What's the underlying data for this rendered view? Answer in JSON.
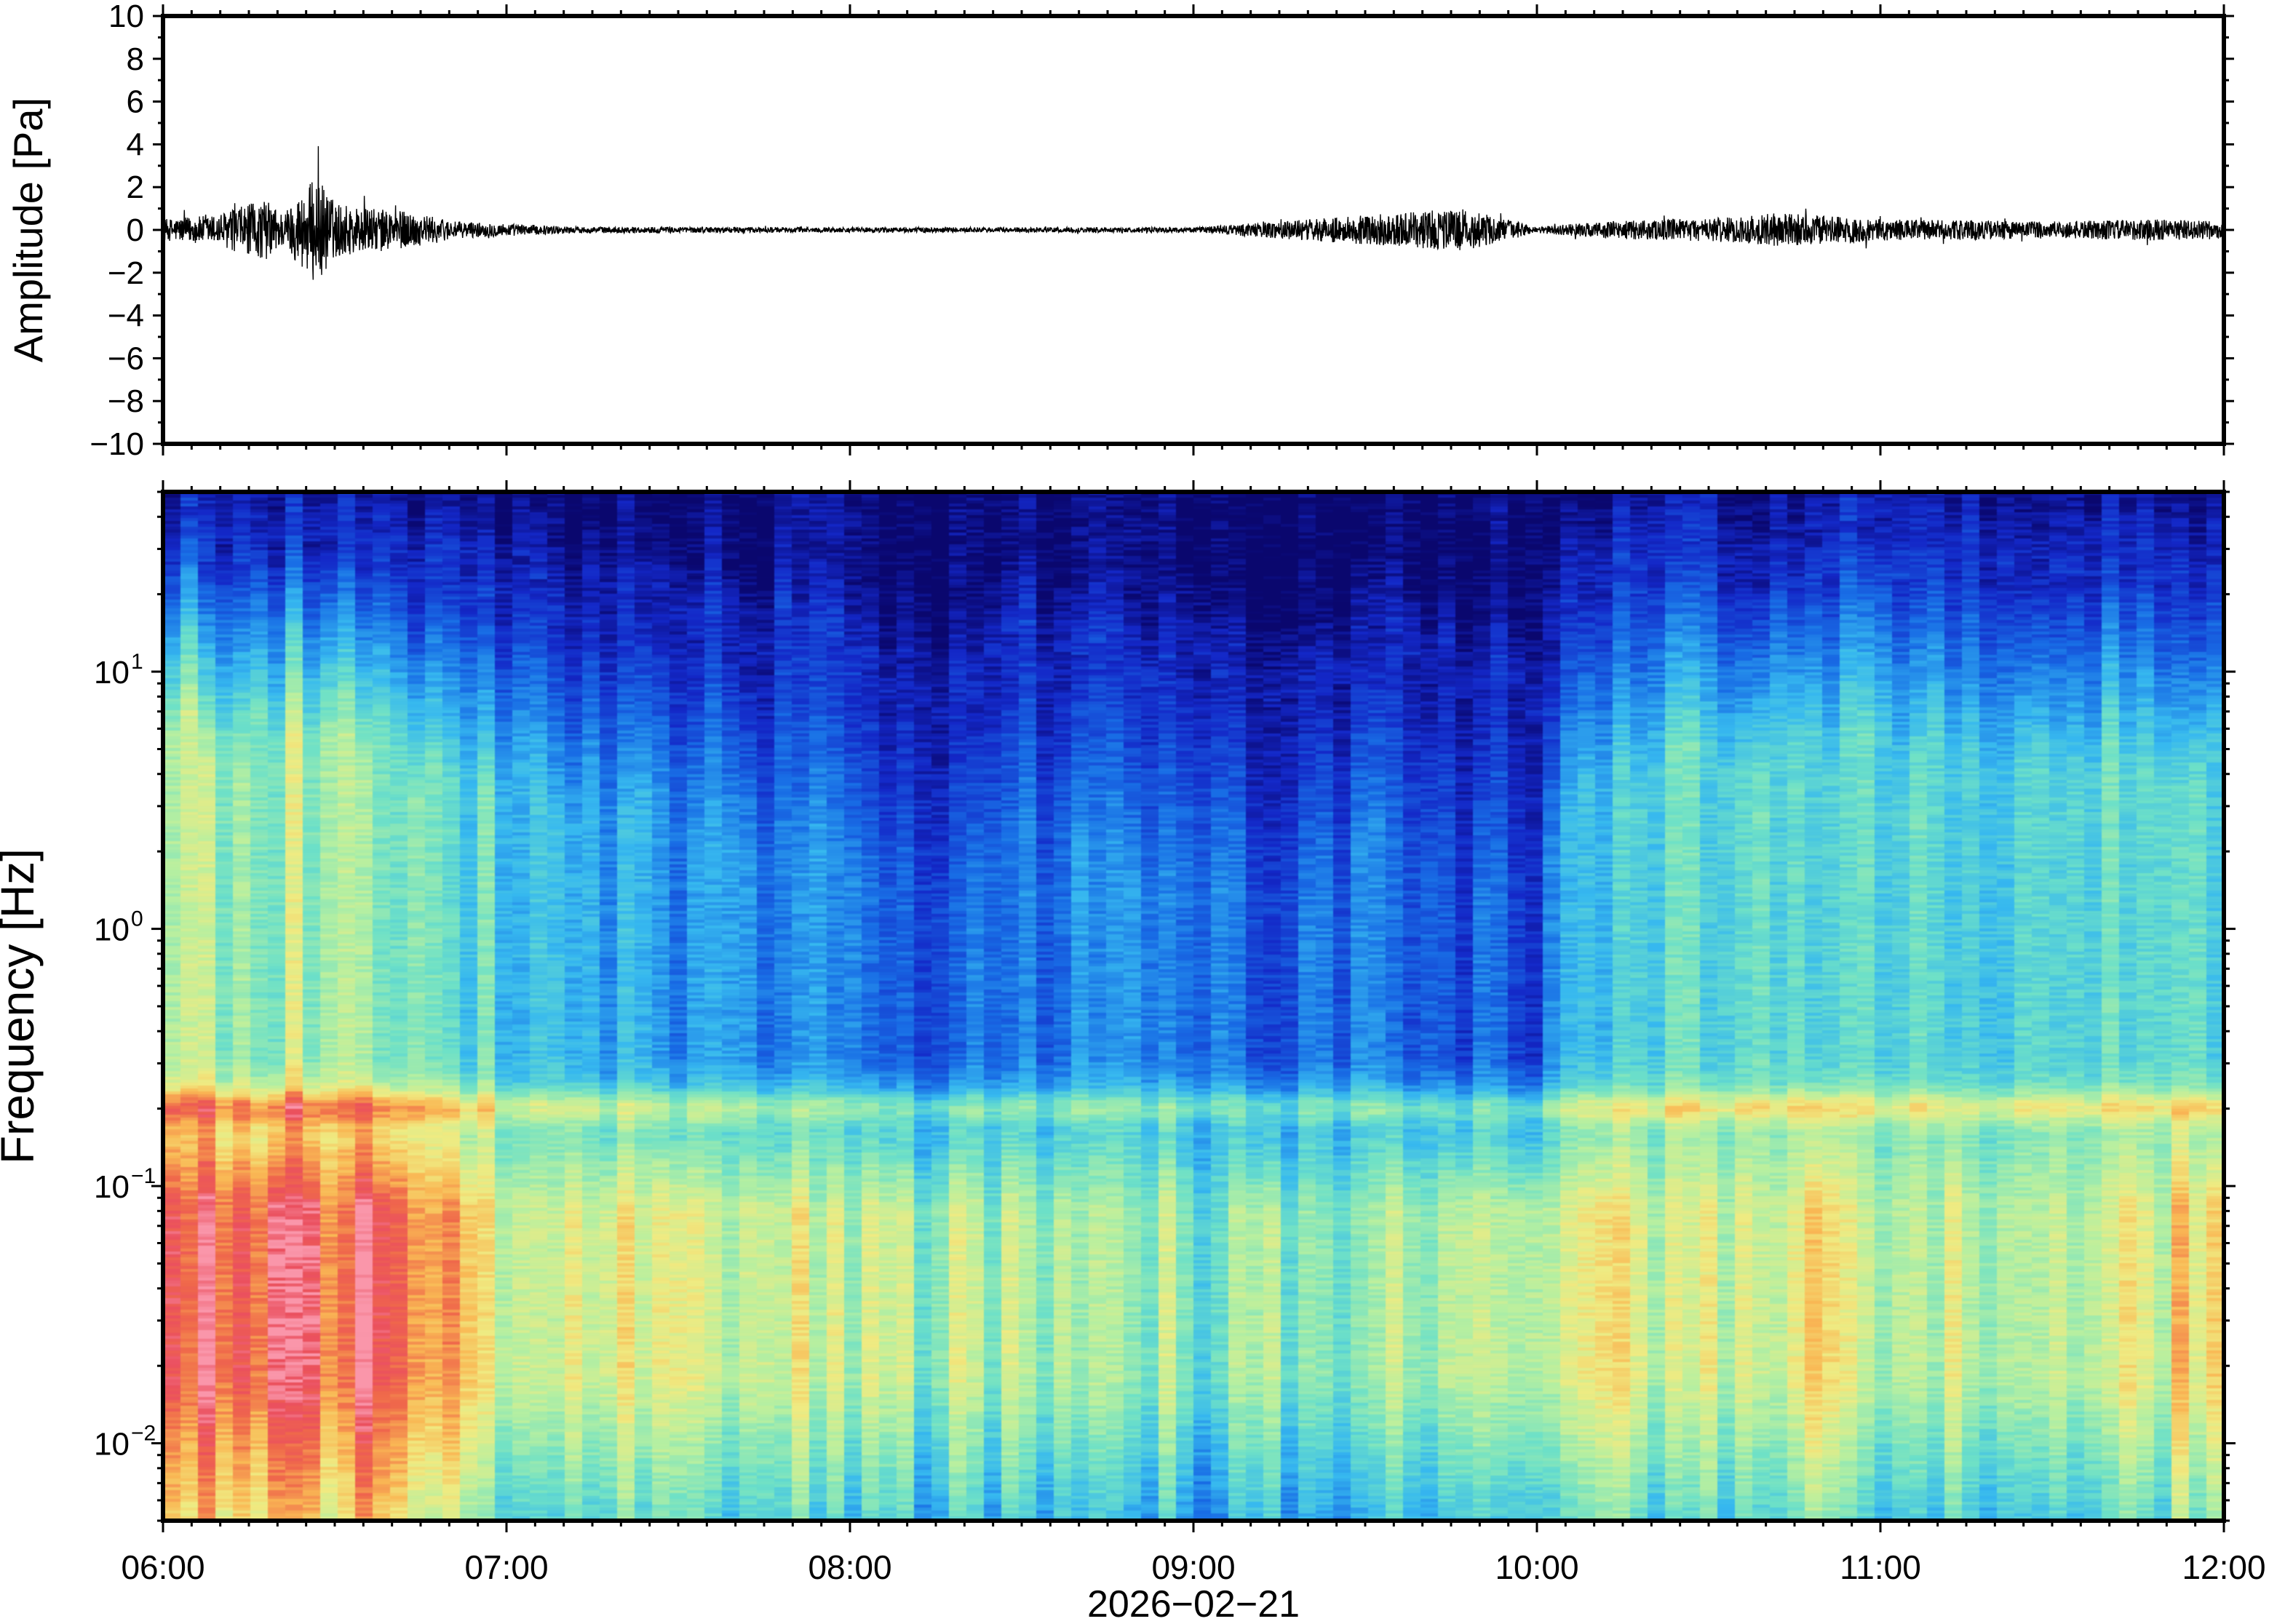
{
  "chart_data": [
    {
      "type": "line",
      "title": "",
      "xlabel": "",
      "ylabel": "Amplitude [Pa]",
      "ylim": [
        -10,
        10
      ],
      "y_ticks": [
        "10",
        "8",
        "6",
        "4",
        "2",
        "0",
        "−2",
        "−4",
        "−6",
        "−8",
        "−10"
      ],
      "y_tick_values": [
        10,
        8,
        6,
        4,
        2,
        0,
        -2,
        -4,
        -6,
        -8,
        -10
      ],
      "x_range": [
        "06:00",
        "12:00"
      ],
      "grid": false,
      "series": [
        {
          "color": "#000000",
          "description_points": "time_hours vs envelope amplitude",
          "envelope": [
            {
              "x": 6.0,
              "y": 0.5
            },
            {
              "x": 6.15,
              "y": 0.7
            },
            {
              "x": 6.25,
              "y": 1.2
            },
            {
              "x": 6.3,
              "y": 1.4
            },
            {
              "x": 6.35,
              "y": 0.8
            },
            {
              "x": 6.45,
              "y": 2.6
            },
            {
              "x": 6.5,
              "y": 1.3
            },
            {
              "x": 6.6,
              "y": 1.0
            },
            {
              "x": 6.7,
              "y": 0.9
            },
            {
              "x": 6.85,
              "y": 0.4
            },
            {
              "x": 7.2,
              "y": 0.15
            },
            {
              "x": 8.0,
              "y": 0.12
            },
            {
              "x": 9.0,
              "y": 0.12
            },
            {
              "x": 9.78,
              "y": 1.0
            },
            {
              "x": 10.0,
              "y": 0.15
            },
            {
              "x": 10.2,
              "y": 0.4
            },
            {
              "x": 10.6,
              "y": 0.6
            },
            {
              "x": 10.7,
              "y": 0.8
            },
            {
              "x": 11.0,
              "y": 0.5
            },
            {
              "x": 11.5,
              "y": 0.4
            },
            {
              "x": 11.8,
              "y": 0.5
            },
            {
              "x": 12.0,
              "y": 0.4
            }
          ]
        }
      ]
    },
    {
      "type": "heatmap",
      "title": "",
      "ylabel": "Frequency [Hz]",
      "xlabel": "2026−02−21",
      "y_scale": "log",
      "ylim": [
        0.005,
        50
      ],
      "y_ticks": [
        {
          "value": 10,
          "base": "10",
          "exp": "1"
        },
        {
          "value": 1,
          "base": "10",
          "exp": "0"
        },
        {
          "value": 0.1,
          "base": "10",
          "exp": "−1"
        },
        {
          "value": 0.01,
          "base": "10",
          "exp": "−2"
        }
      ],
      "x_ticks": [
        "06:00",
        "07:00",
        "08:00",
        "09:00",
        "10:00",
        "11:00",
        "12:00"
      ],
      "x_tick_values": [
        6,
        7,
        8,
        9,
        10,
        11,
        12
      ],
      "colormap": "rainbow (dark blue = low, red/pink = high)",
      "grid": false,
      "columns_time_hours": [
        6.0,
        6.25,
        6.5,
        6.75,
        7.0,
        7.5,
        8.0,
        8.25,
        8.5,
        9.0,
        9.25,
        9.5,
        10.0,
        10.1,
        10.5,
        10.75,
        11.0,
        11.5,
        12.0
      ],
      "upper_noise_top_hz": [
        35,
        30,
        32,
        25,
        22,
        15,
        12,
        8,
        12,
        10,
        8,
        12,
        8,
        25,
        28,
        30,
        30,
        28,
        25
      ],
      "mid_level": [
        0.55,
        0.55,
        0.58,
        0.45,
        0.4,
        0.3,
        0.22,
        0.2,
        0.25,
        0.22,
        0.2,
        0.25,
        0.18,
        0.35,
        0.42,
        0.45,
        0.42,
        0.42,
        0.45
      ],
      "low_freq_level": [
        0.88,
        0.92,
        0.95,
        0.85,
        0.68,
        0.6,
        0.58,
        0.55,
        0.6,
        0.52,
        0.55,
        0.58,
        0.62,
        0.65,
        0.62,
        0.72,
        0.62,
        0.62,
        0.68
      ],
      "microseism_band_hz": 0.2
    }
  ]
}
